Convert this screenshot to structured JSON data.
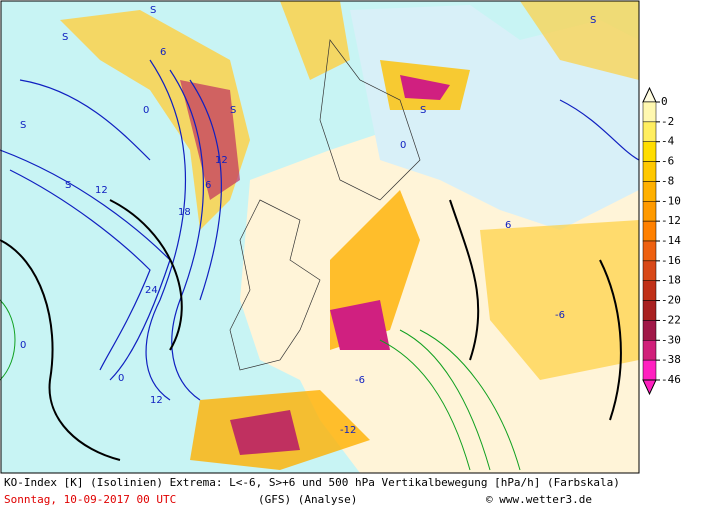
{
  "legend": {
    "ticks": [
      0,
      -2,
      -4,
      -6,
      -8,
      -10,
      -12,
      -14,
      -16,
      -18,
      -20,
      -22,
      -30,
      -38,
      -46
    ],
    "colors": [
      "#fff8b0",
      "#ffee60",
      "#ffdd00",
      "#ffc800",
      "#ffb000",
      "#ff9a00",
      "#ff8000",
      "#ee6010",
      "#d84818",
      "#c03018",
      "#a82020",
      "#a01848",
      "#d0207a",
      "#ff20c0"
    ]
  },
  "footer": {
    "line1": "KO-Index [K] (Isolinien) Extrema: L<-6, S>+6 und 500 hPa Vertikalbewegung [hPa/h] (Farbskala)",
    "date": "Sonntag, 10-09-2017  00 UTC",
    "model": "(GFS)  (Analyse)",
    "credit": "© www.wetter3.de"
  },
  "map_labels": [
    "S",
    "S",
    "S",
    "S",
    "S",
    "S",
    "0",
    "0",
    "0",
    "6",
    "6",
    "12",
    "12",
    "18",
    "24",
    "-6",
    "-12",
    "-6",
    "12",
    "0",
    "6",
    "S"
  ]
}
